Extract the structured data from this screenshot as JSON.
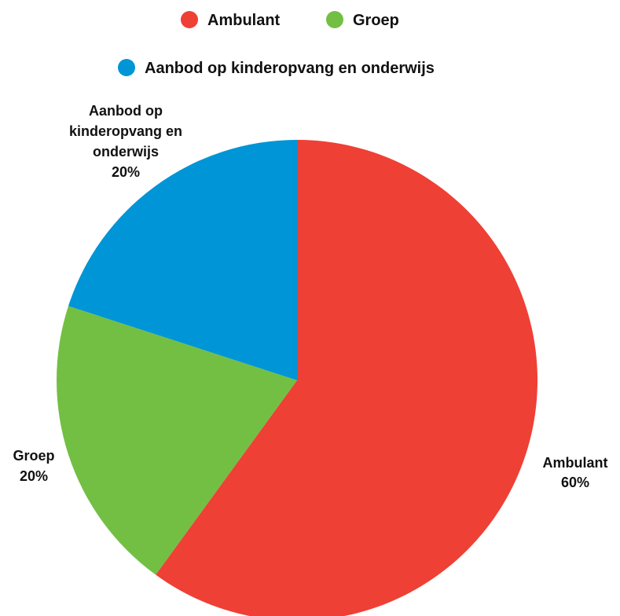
{
  "chart_data": {
    "type": "pie",
    "title": "",
    "slices": [
      {
        "name": "Ambulant",
        "value": 60,
        "label_value": "60%",
        "color": "#ee4035"
      },
      {
        "name": "Groep",
        "value": 20,
        "label_value": "20%",
        "color": "#72bf44"
      },
      {
        "name": "Aanbod op kinderopvang en onderwijs",
        "value": 20,
        "label_value": "20%",
        "color": "#0095d6",
        "label_lines": [
          "Aanbod op",
          "kinderopvang en",
          "onderwijs"
        ]
      }
    ],
    "legend": {
      "placement": "top",
      "entries": [
        "Ambulant",
        "Groep",
        "Aanbod op kinderopvang en onderwijs"
      ]
    },
    "start_angle": "12 o'clock",
    "direction": "clockwise"
  }
}
